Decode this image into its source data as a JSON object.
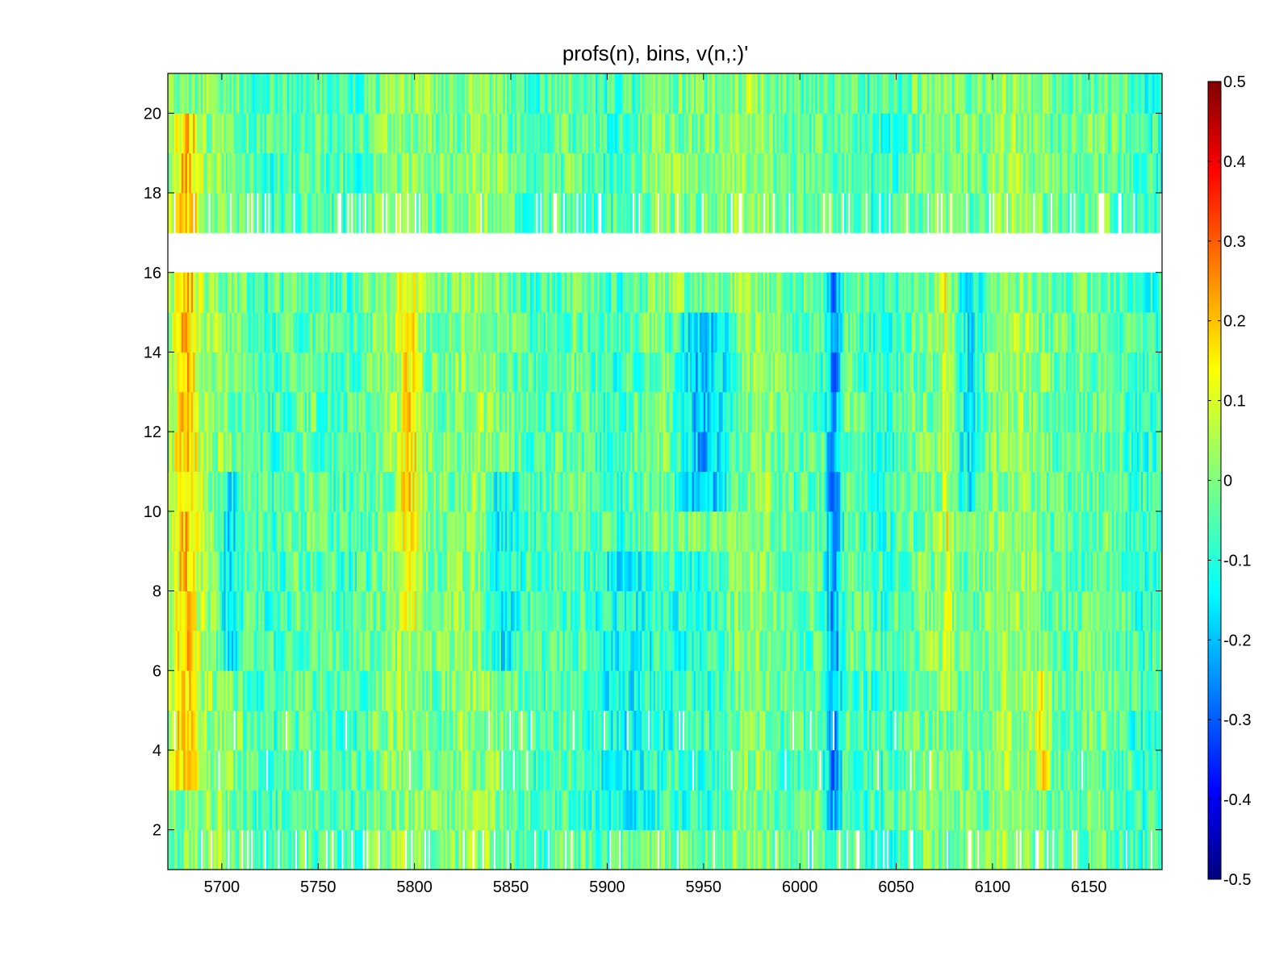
{
  "chart_data": {
    "type": "heatmap",
    "title": "profs(n), bins,        v(n,:)'",
    "xlabel": "",
    "ylabel": "",
    "xlim": [
      5672,
      6188
    ],
    "ylim": [
      1,
      21
    ],
    "x_ticks": [
      "5700",
      "5750",
      "5800",
      "5850",
      "5900",
      "5950",
      "6000",
      "6050",
      "6100",
      "6150"
    ],
    "x_tick_values": [
      5700,
      5750,
      5800,
      5850,
      5900,
      5950,
      6000,
      6050,
      6100,
      6150
    ],
    "y_ticks": [
      "2",
      "4",
      "6",
      "8",
      "10",
      "12",
      "14",
      "16",
      "18",
      "20"
    ],
    "y_tick_values": [
      2,
      4,
      6,
      8,
      10,
      12,
      14,
      16,
      18,
      20
    ],
    "colorbar": {
      "colormap": "jet",
      "clim": [
        -0.5,
        0.5
      ],
      "ticks": [
        "-0.5",
        "-0.4",
        "-0.3",
        "-0.2",
        "-0.1",
        "0",
        "0.1",
        "0.2",
        "0.3",
        "0.4",
        "0.5"
      ],
      "tick_values": [
        -0.5,
        -0.4,
        -0.3,
        -0.2,
        -0.1,
        0,
        0.1,
        0.2,
        0.3,
        0.4,
        0.5
      ]
    },
    "bins": [
      1,
      2,
      3,
      4,
      5,
      6,
      7,
      8,
      9,
      10,
      11,
      12,
      13,
      14,
      15,
      16,
      17,
      18,
      19,
      20
    ],
    "missing_bins": [
      16
    ],
    "features": [
      {
        "x": 5681,
        "width": 10,
        "bins_from": 3,
        "bins_to": 19,
        "value": 0.2
      },
      {
        "x": 5797,
        "width": 8,
        "bins_from": 7,
        "bins_to": 15,
        "value": 0.14
      },
      {
        "x": 5703,
        "width": 8,
        "bins_from": 6,
        "bins_to": 10,
        "value": -0.18
      },
      {
        "x": 5845,
        "width": 12,
        "bins_from": 6,
        "bins_to": 10,
        "value": -0.17
      },
      {
        "x": 5950,
        "width": 20,
        "bins_from": 10,
        "bins_to": 14,
        "value": -0.24
      },
      {
        "x": 6017,
        "width": 6,
        "bins_from": 2,
        "bins_to": 15,
        "value": -0.26
      },
      {
        "x": 6076,
        "width": 4,
        "bins_from": 5,
        "bins_to": 15,
        "value": 0.12
      },
      {
        "x": 6088,
        "width": 10,
        "bins_from": 10,
        "bins_to": 15,
        "value": -0.15
      },
      {
        "x": 5930,
        "width": 50,
        "bins_from": 2,
        "bins_to": 8,
        "value": -0.12
      },
      {
        "x": 6125,
        "width": 5,
        "bins_from": 3,
        "bins_to": 5,
        "value": 0.15
      }
    ],
    "background_value": -0.02,
    "noise_amplitude": 0.09
  }
}
